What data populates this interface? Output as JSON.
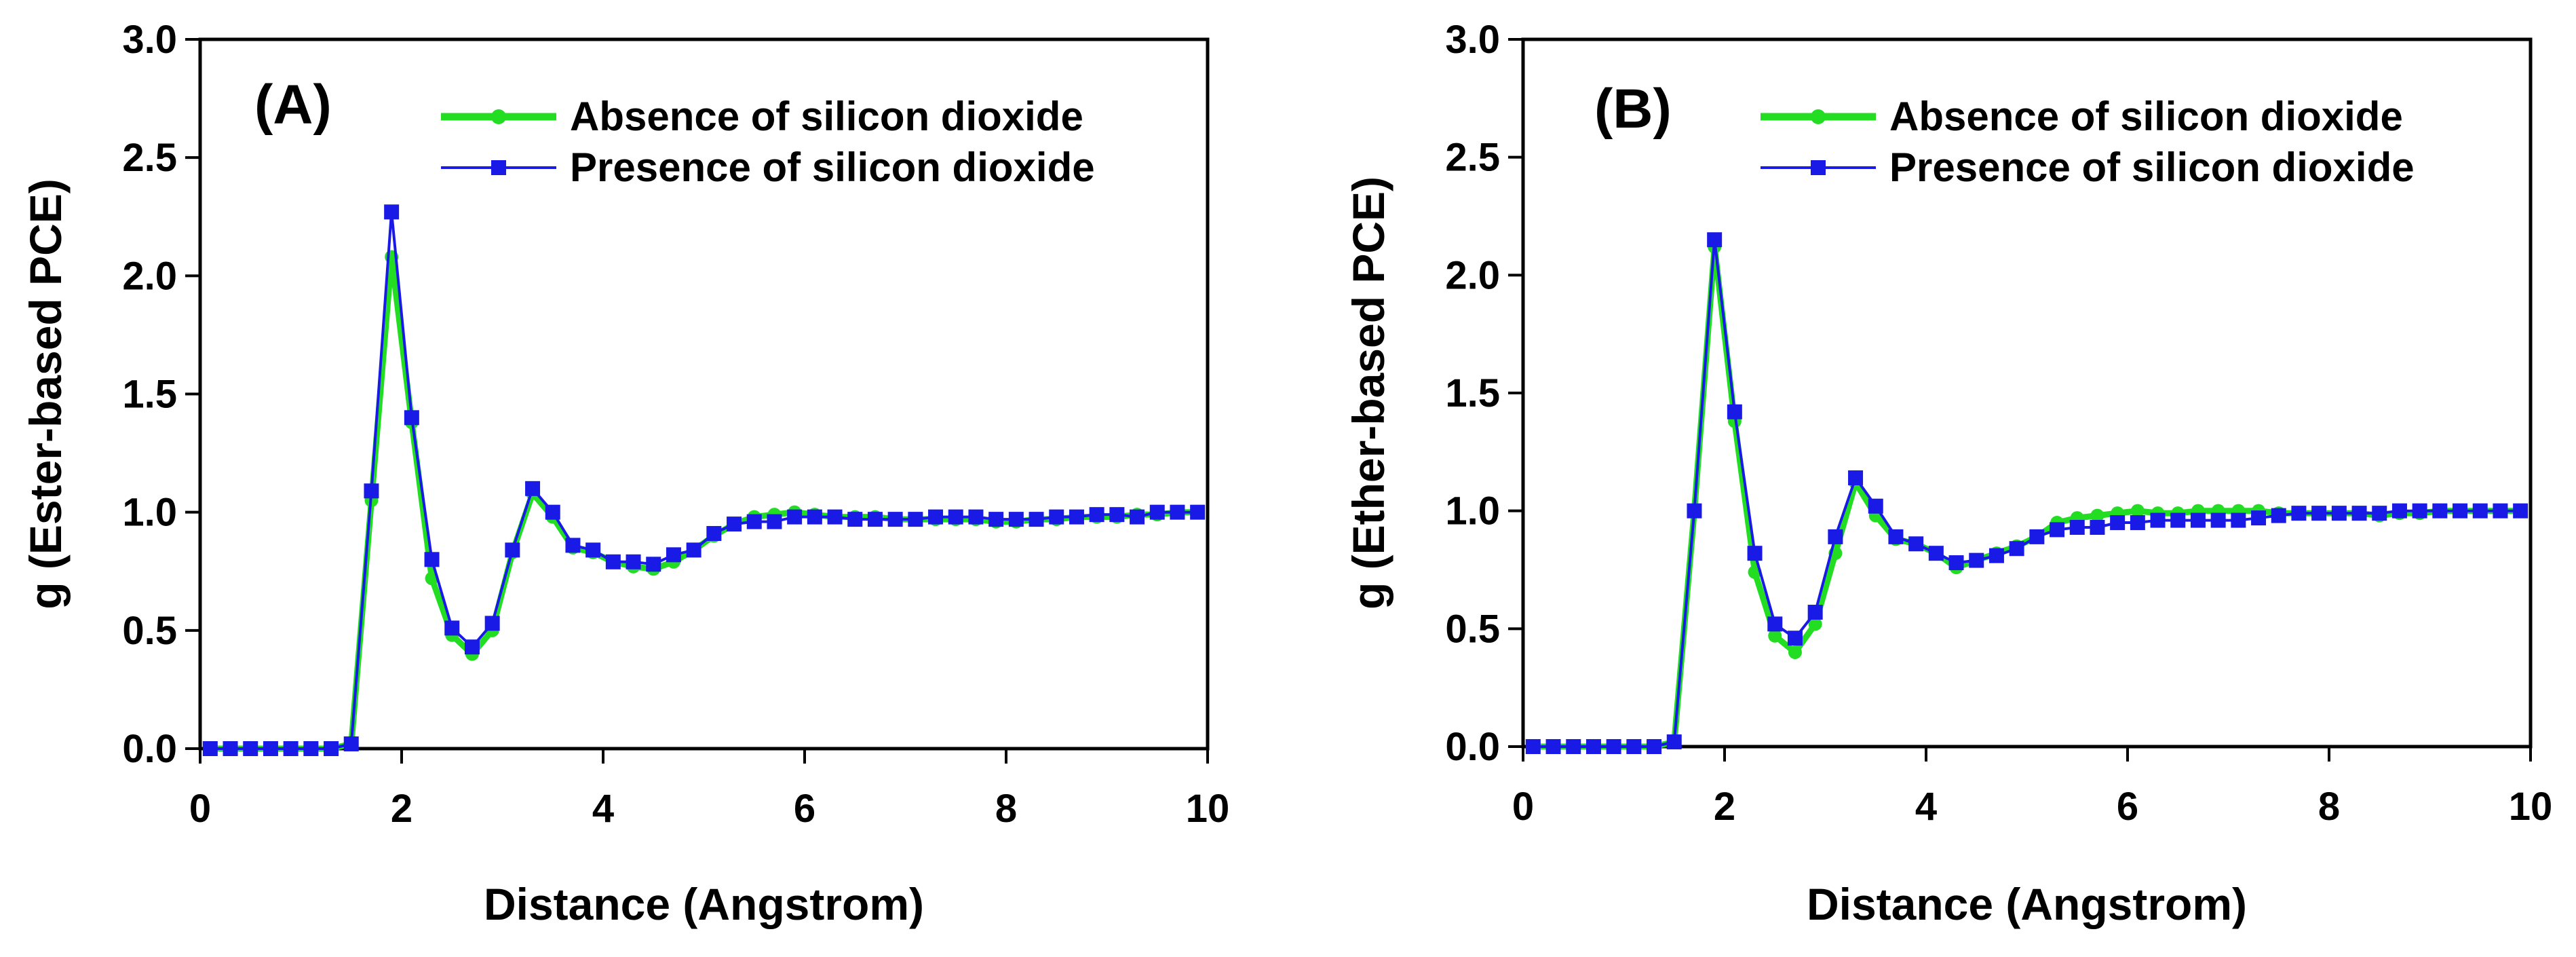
{
  "chart_data": [
    {
      "type": "line",
      "panel_label": "(A)",
      "xlabel": "Distance (Angstrom)",
      "ylabel": "g (Ester-based PCE)",
      "xlim": [
        0,
        10
      ],
      "ylim": [
        0,
        3
      ],
      "xticks": [
        "0",
        "2",
        "4",
        "6",
        "8",
        "10"
      ],
      "yticks": [
        "0.0",
        "0.5",
        "1.0",
        "1.5",
        "2.0",
        "2.5",
        "3.0"
      ],
      "legend_position": "top-right",
      "x": [
        0.1,
        0.3,
        0.5,
        0.7,
        0.9,
        1.1,
        1.3,
        1.5,
        1.7,
        1.9,
        2.1,
        2.3,
        2.5,
        2.7,
        2.9,
        3.1,
        3.3,
        3.5,
        3.7,
        3.9,
        4.1,
        4.3,
        4.5,
        4.7,
        4.9,
        5.1,
        5.3,
        5.5,
        5.7,
        5.9,
        6.1,
        6.3,
        6.5,
        6.7,
        6.9,
        7.1,
        7.3,
        7.5,
        7.7,
        7.9,
        8.1,
        8.3,
        8.5,
        8.7,
        8.9,
        9.1,
        9.3,
        9.5,
        9.7,
        9.9
      ],
      "series": [
        {
          "name": "Absence of silicon dioxide",
          "color": "#22dd22",
          "marker": "circle",
          "values": [
            0,
            0,
            0,
            0,
            0,
            0,
            0,
            0.02,
            1.05,
            2.08,
            1.38,
            0.72,
            0.48,
            0.4,
            0.5,
            0.83,
            1.08,
            0.98,
            0.85,
            0.83,
            0.79,
            0.77,
            0.76,
            0.79,
            0.84,
            0.9,
            0.95,
            0.98,
            0.99,
            1.0,
            0.99,
            0.98,
            0.98,
            0.98,
            0.97,
            0.97,
            0.97,
            0.97,
            0.97,
            0.96,
            0.96,
            0.97,
            0.97,
            0.98,
            0.98,
            0.98,
            0.99,
            0.99,
            1.0,
            1.0
          ]
        },
        {
          "name": "Presence of silicon dioxide",
          "color": "#1a1ae6",
          "marker": "square",
          "values": [
            0,
            0,
            0,
            0,
            0,
            0,
            0,
            0.02,
            1.09,
            2.27,
            1.4,
            0.8,
            0.51,
            0.43,
            0.53,
            0.84,
            1.1,
            1.0,
            0.86,
            0.84,
            0.79,
            0.79,
            0.78,
            0.82,
            0.84,
            0.91,
            0.95,
            0.96,
            0.96,
            0.98,
            0.98,
            0.98,
            0.97,
            0.97,
            0.97,
            0.97,
            0.98,
            0.98,
            0.98,
            0.97,
            0.97,
            0.97,
            0.98,
            0.98,
            0.99,
            0.99,
            0.98,
            1.0,
            1.0,
            1.0
          ]
        }
      ]
    },
    {
      "type": "line",
      "panel_label": "(B)",
      "xlabel": "Distance (Angstrom)",
      "ylabel": "g (Ether-based PCE)",
      "xlim": [
        0,
        10
      ],
      "ylim": [
        0,
        3
      ],
      "xticks": [
        "0",
        "2",
        "4",
        "6",
        "8",
        "10"
      ],
      "yticks": [
        "0.0",
        "0.5",
        "1.0",
        "1.5",
        "2.0",
        "2.5",
        "3.0"
      ],
      "legend_position": "top-right",
      "x": [
        0.1,
        0.3,
        0.5,
        0.7,
        0.9,
        1.1,
        1.3,
        1.5,
        1.7,
        1.9,
        2.1,
        2.3,
        2.5,
        2.7,
        2.9,
        3.1,
        3.3,
        3.5,
        3.7,
        3.9,
        4.1,
        4.3,
        4.5,
        4.7,
        4.9,
        5.1,
        5.3,
        5.5,
        5.7,
        5.9,
        6.1,
        6.3,
        6.5,
        6.7,
        6.9,
        7.1,
        7.3,
        7.5,
        7.7,
        7.9,
        8.1,
        8.3,
        8.5,
        8.7,
        8.9,
        9.1,
        9.3,
        9.5,
        9.7,
        9.9
      ],
      "series": [
        {
          "name": "Absence of silicon dioxide",
          "color": "#22dd22",
          "marker": "circle",
          "values": [
            0,
            0,
            0,
            0,
            0,
            0,
            0,
            0.02,
            1.0,
            2.12,
            1.38,
            0.74,
            0.47,
            0.4,
            0.52,
            0.82,
            1.12,
            0.98,
            0.88,
            0.86,
            0.82,
            0.76,
            0.79,
            0.82,
            0.85,
            0.89,
            0.95,
            0.97,
            0.98,
            0.99,
            1.0,
            0.99,
            0.99,
            1.0,
            1.0,
            1.0,
            1.0,
            0.99,
            0.99,
            0.99,
            0.99,
            0.99,
            0.98,
            0.99,
            0.99,
            1.0,
            1.0,
            1.0,
            1.0,
            1.0
          ]
        },
        {
          "name": "Presence of silicon dioxide",
          "color": "#1a1ae6",
          "marker": "square",
          "values": [
            0,
            0,
            0,
            0,
            0,
            0,
            0,
            0.02,
            1.0,
            2.15,
            1.42,
            0.82,
            0.52,
            0.46,
            0.57,
            0.89,
            1.14,
            1.02,
            0.89,
            0.86,
            0.82,
            0.78,
            0.79,
            0.81,
            0.84,
            0.89,
            0.92,
            0.93,
            0.93,
            0.95,
            0.95,
            0.96,
            0.96,
            0.96,
            0.96,
            0.96,
            0.97,
            0.98,
            0.99,
            0.99,
            0.99,
            0.99,
            0.99,
            1.0,
            1.0,
            1.0,
            1.0,
            1.0,
            1.0,
            1.0
          ]
        }
      ]
    }
  ]
}
